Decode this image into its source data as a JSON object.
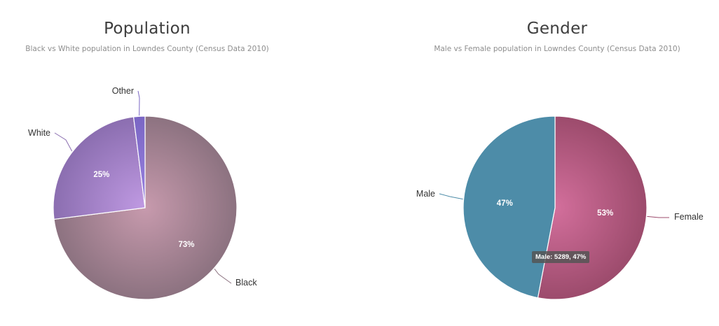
{
  "chart_data": [
    {
      "type": "pie",
      "title": "Population",
      "subtitle": "Black vs White population in Lowndes County (Census Data 2010)",
      "slices": [
        {
          "name": "Black",
          "value": 73,
          "label": "73%",
          "color_inner": "#c79aad",
          "color_outer": "#8c7280"
        },
        {
          "name": "White",
          "value": 25,
          "label": "25%",
          "color_inner": "#c09ae3",
          "color_outer": "#8b6eb0"
        },
        {
          "name": "Other",
          "value": 2,
          "label": "",
          "color_inner": "#9a82e0",
          "color_outer": "#7a66c4"
        }
      ]
    },
    {
      "type": "pie",
      "title": "Gender",
      "subtitle": "Male vs Female population in Lowndes County (Census Data 2010)",
      "slices": [
        {
          "name": "Female",
          "value": 53,
          "label": "53%",
          "color_inner": "#d36f9c",
          "color_outer": "#9c4b6c"
        },
        {
          "name": "Male",
          "value": 47,
          "label": "47%",
          "color_inner": "#4d8ca8",
          "color_outer": "#4d8ca8"
        }
      ],
      "tooltip": "Male: 5289, 47%"
    }
  ]
}
